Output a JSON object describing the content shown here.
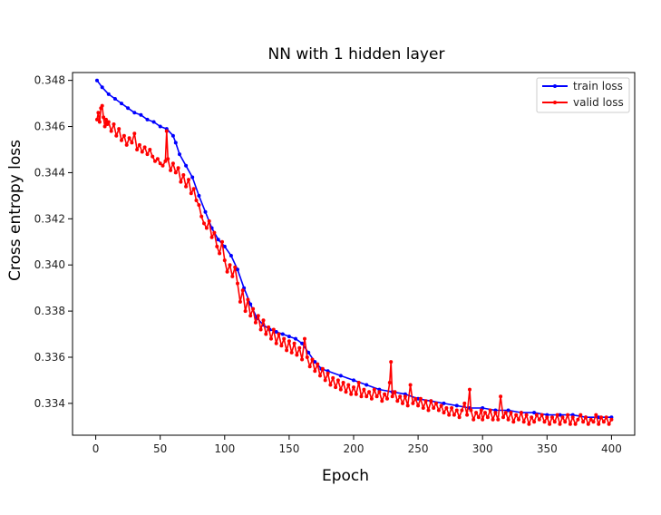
{
  "chart_data": {
    "type": "line",
    "title": "NN with 1 hidden layer",
    "xlabel": "Epoch",
    "ylabel": "Cross entropy loss",
    "xlim": [
      -18,
      418
    ],
    "ylim": [
      0.33262,
      0.34834
    ],
    "xticks": [
      0,
      50,
      100,
      150,
      200,
      250,
      300,
      350,
      400
    ],
    "yticks": [
      0.334,
      0.336,
      0.338,
      0.34,
      0.342,
      0.344,
      0.346,
      0.348
    ],
    "ytick_labels": [
      "0.334",
      "0.336",
      "0.338",
      "0.340",
      "0.342",
      "0.344",
      "0.346",
      "0.348"
    ],
    "grid": false,
    "legend_position": "top-right",
    "series": [
      {
        "name": "train loss",
        "color": "#0000ff",
        "points": [
          [
            1,
            0.348
          ],
          [
            5,
            0.3477
          ],
          [
            10,
            0.3474
          ],
          [
            15,
            0.3472
          ],
          [
            20,
            0.347
          ],
          [
            25,
            0.3468
          ],
          [
            30,
            0.3466
          ],
          [
            35,
            0.3465
          ],
          [
            40,
            0.3463
          ],
          [
            45,
            0.3462
          ],
          [
            50,
            0.346
          ],
          [
            55,
            0.3459
          ],
          [
            60,
            0.3456
          ],
          [
            62,
            0.3453
          ],
          [
            65,
            0.3448
          ],
          [
            70,
            0.3443
          ],
          [
            75,
            0.3438
          ],
          [
            80,
            0.343
          ],
          [
            85,
            0.3423
          ],
          [
            90,
            0.3416
          ],
          [
            95,
            0.3411
          ],
          [
            100,
            0.3408
          ],
          [
            105,
            0.3404
          ],
          [
            110,
            0.3398
          ],
          [
            115,
            0.339
          ],
          [
            120,
            0.3383
          ],
          [
            125,
            0.3377
          ],
          [
            130,
            0.3374
          ],
          [
            135,
            0.3372
          ],
          [
            140,
            0.3371
          ],
          [
            145,
            0.337
          ],
          [
            150,
            0.3369
          ],
          [
            155,
            0.3368
          ],
          [
            160,
            0.3366
          ],
          [
            165,
            0.3362
          ],
          [
            170,
            0.3358
          ],
          [
            175,
            0.3355
          ],
          [
            180,
            0.3354
          ],
          [
            190,
            0.3352
          ],
          [
            200,
            0.335
          ],
          [
            210,
            0.3348
          ],
          [
            220,
            0.3346
          ],
          [
            230,
            0.3345
          ],
          [
            240,
            0.3344
          ],
          [
            250,
            0.3342
          ],
          [
            260,
            0.3341
          ],
          [
            270,
            0.334
          ],
          [
            280,
            0.3339
          ],
          [
            290,
            0.3338
          ],
          [
            300,
            0.3338
          ],
          [
            310,
            0.3337
          ],
          [
            320,
            0.3337
          ],
          [
            330,
            0.3336
          ],
          [
            340,
            0.3336
          ],
          [
            350,
            0.3335
          ],
          [
            360,
            0.3335
          ],
          [
            370,
            0.3335
          ],
          [
            380,
            0.3334
          ],
          [
            390,
            0.3334
          ],
          [
            400,
            0.3334
          ]
        ]
      },
      {
        "name": "valid loss",
        "color": "#ff0000",
        "points": [
          [
            1,
            0.3463
          ],
          [
            2,
            0.3466
          ],
          [
            3,
            0.3462
          ],
          [
            4,
            0.3468
          ],
          [
            5,
            0.3469
          ],
          [
            6,
            0.3464
          ],
          [
            7,
            0.346
          ],
          [
            8,
            0.3463
          ],
          [
            9,
            0.3461
          ],
          [
            10,
            0.3462
          ],
          [
            12,
            0.3458
          ],
          [
            14,
            0.3461
          ],
          [
            16,
            0.3456
          ],
          [
            18,
            0.3459
          ],
          [
            20,
            0.3454
          ],
          [
            22,
            0.3456
          ],
          [
            24,
            0.3452
          ],
          [
            26,
            0.3455
          ],
          [
            28,
            0.3453
          ],
          [
            30,
            0.3457
          ],
          [
            32,
            0.345
          ],
          [
            34,
            0.3452
          ],
          [
            36,
            0.3449
          ],
          [
            38,
            0.3451
          ],
          [
            40,
            0.3448
          ],
          [
            42,
            0.345
          ],
          [
            44,
            0.3447
          ],
          [
            46,
            0.3445
          ],
          [
            48,
            0.3446
          ],
          [
            50,
            0.3444
          ],
          [
            52,
            0.3443
          ],
          [
            54,
            0.3445
          ],
          [
            55,
            0.3458
          ],
          [
            56,
            0.3446
          ],
          [
            58,
            0.3441
          ],
          [
            60,
            0.3444
          ],
          [
            62,
            0.344
          ],
          [
            64,
            0.3442
          ],
          [
            66,
            0.3436
          ],
          [
            68,
            0.3439
          ],
          [
            70,
            0.3434
          ],
          [
            72,
            0.3437
          ],
          [
            74,
            0.3431
          ],
          [
            76,
            0.3433
          ],
          [
            78,
            0.3428
          ],
          [
            80,
            0.3426
          ],
          [
            82,
            0.3421
          ],
          [
            84,
            0.3418
          ],
          [
            86,
            0.3416
          ],
          [
            88,
            0.3419
          ],
          [
            90,
            0.3412
          ],
          [
            92,
            0.3414
          ],
          [
            94,
            0.3408
          ],
          [
            96,
            0.3405
          ],
          [
            98,
            0.341
          ],
          [
            100,
            0.3402
          ],
          [
            102,
            0.3397
          ],
          [
            104,
            0.34
          ],
          [
            106,
            0.3395
          ],
          [
            108,
            0.3399
          ],
          [
            110,
            0.3392
          ],
          [
            112,
            0.3384
          ],
          [
            114,
            0.3389
          ],
          [
            116,
            0.338
          ],
          [
            118,
            0.3385
          ],
          [
            120,
            0.3378
          ],
          [
            122,
            0.3381
          ],
          [
            124,
            0.3375
          ],
          [
            126,
            0.3378
          ],
          [
            128,
            0.3372
          ],
          [
            130,
            0.3376
          ],
          [
            132,
            0.337
          ],
          [
            134,
            0.3373
          ],
          [
            136,
            0.3368
          ],
          [
            138,
            0.3372
          ],
          [
            140,
            0.3366
          ],
          [
            142,
            0.337
          ],
          [
            144,
            0.3365
          ],
          [
            146,
            0.3368
          ],
          [
            148,
            0.3363
          ],
          [
            150,
            0.3367
          ],
          [
            152,
            0.3362
          ],
          [
            154,
            0.3366
          ],
          [
            156,
            0.3361
          ],
          [
            158,
            0.3364
          ],
          [
            160,
            0.3359
          ],
          [
            162,
            0.3368
          ],
          [
            164,
            0.336
          ],
          [
            166,
            0.3356
          ],
          [
            168,
            0.3359
          ],
          [
            170,
            0.3354
          ],
          [
            172,
            0.3357
          ],
          [
            174,
            0.3352
          ],
          [
            176,
            0.3355
          ],
          [
            178,
            0.335
          ],
          [
            180,
            0.3353
          ],
          [
            182,
            0.3348
          ],
          [
            184,
            0.3351
          ],
          [
            186,
            0.3347
          ],
          [
            188,
            0.335
          ],
          [
            190,
            0.3346
          ],
          [
            192,
            0.3349
          ],
          [
            194,
            0.3345
          ],
          [
            196,
            0.3348
          ],
          [
            198,
            0.3344
          ],
          [
            200,
            0.3347
          ],
          [
            202,
            0.3344
          ],
          [
            204,
            0.3349
          ],
          [
            206,
            0.3343
          ],
          [
            208,
            0.3346
          ],
          [
            210,
            0.3343
          ],
          [
            212,
            0.3345
          ],
          [
            214,
            0.3342
          ],
          [
            216,
            0.3346
          ],
          [
            218,
            0.3343
          ],
          [
            220,
            0.3345
          ],
          [
            222,
            0.3341
          ],
          [
            224,
            0.3344
          ],
          [
            226,
            0.3342
          ],
          [
            228,
            0.3349
          ],
          [
            229,
            0.3358
          ],
          [
            230,
            0.3343
          ],
          [
            232,
            0.3345
          ],
          [
            234,
            0.3341
          ],
          [
            236,
            0.3343
          ],
          [
            238,
            0.334
          ],
          [
            240,
            0.3343
          ],
          [
            242,
            0.3339
          ],
          [
            244,
            0.3348
          ],
          [
            246,
            0.334
          ],
          [
            248,
            0.3342
          ],
          [
            250,
            0.3339
          ],
          [
            252,
            0.3342
          ],
          [
            254,
            0.3338
          ],
          [
            256,
            0.3341
          ],
          [
            258,
            0.3337
          ],
          [
            260,
            0.3341
          ],
          [
            262,
            0.3338
          ],
          [
            264,
            0.334
          ],
          [
            266,
            0.3337
          ],
          [
            268,
            0.3339
          ],
          [
            270,
            0.3336
          ],
          [
            272,
            0.3338
          ],
          [
            274,
            0.3335
          ],
          [
            276,
            0.3338
          ],
          [
            278,
            0.3335
          ],
          [
            280,
            0.3337
          ],
          [
            282,
            0.3334
          ],
          [
            284,
            0.3337
          ],
          [
            286,
            0.334
          ],
          [
            288,
            0.3335
          ],
          [
            290,
            0.3346
          ],
          [
            291,
            0.3337
          ],
          [
            293,
            0.3333
          ],
          [
            295,
            0.3336
          ],
          [
            297,
            0.3334
          ],
          [
            299,
            0.3337
          ],
          [
            300,
            0.3333
          ],
          [
            302,
            0.3336
          ],
          [
            304,
            0.3334
          ],
          [
            306,
            0.3337
          ],
          [
            308,
            0.3333
          ],
          [
            310,
            0.3336
          ],
          [
            312,
            0.3333
          ],
          [
            314,
            0.3343
          ],
          [
            316,
            0.3334
          ],
          [
            318,
            0.3336
          ],
          [
            320,
            0.3333
          ],
          [
            322,
            0.3336
          ],
          [
            324,
            0.3332
          ],
          [
            326,
            0.3335
          ],
          [
            328,
            0.3333
          ],
          [
            330,
            0.3336
          ],
          [
            332,
            0.3332
          ],
          [
            334,
            0.3335
          ],
          [
            336,
            0.3331
          ],
          [
            338,
            0.3334
          ],
          [
            340,
            0.3332
          ],
          [
            342,
            0.3335
          ],
          [
            344,
            0.3333
          ],
          [
            346,
            0.3335
          ],
          [
            348,
            0.3332
          ],
          [
            350,
            0.3334
          ],
          [
            352,
            0.3331
          ],
          [
            354,
            0.3334
          ],
          [
            356,
            0.3332
          ],
          [
            358,
            0.3335
          ],
          [
            360,
            0.3331
          ],
          [
            362,
            0.3334
          ],
          [
            364,
            0.3332
          ],
          [
            366,
            0.3335
          ],
          [
            368,
            0.3331
          ],
          [
            370,
            0.3334
          ],
          [
            372,
            0.3331
          ],
          [
            374,
            0.3333
          ],
          [
            376,
            0.3335
          ],
          [
            378,
            0.3332
          ],
          [
            380,
            0.3334
          ],
          [
            382,
            0.3331
          ],
          [
            384,
            0.3333
          ],
          [
            386,
            0.3332
          ],
          [
            388,
            0.3335
          ],
          [
            390,
            0.3331
          ],
          [
            392,
            0.3334
          ],
          [
            394,
            0.3332
          ],
          [
            396,
            0.3334
          ],
          [
            398,
            0.3331
          ],
          [
            400,
            0.3333
          ]
        ]
      }
    ]
  }
}
